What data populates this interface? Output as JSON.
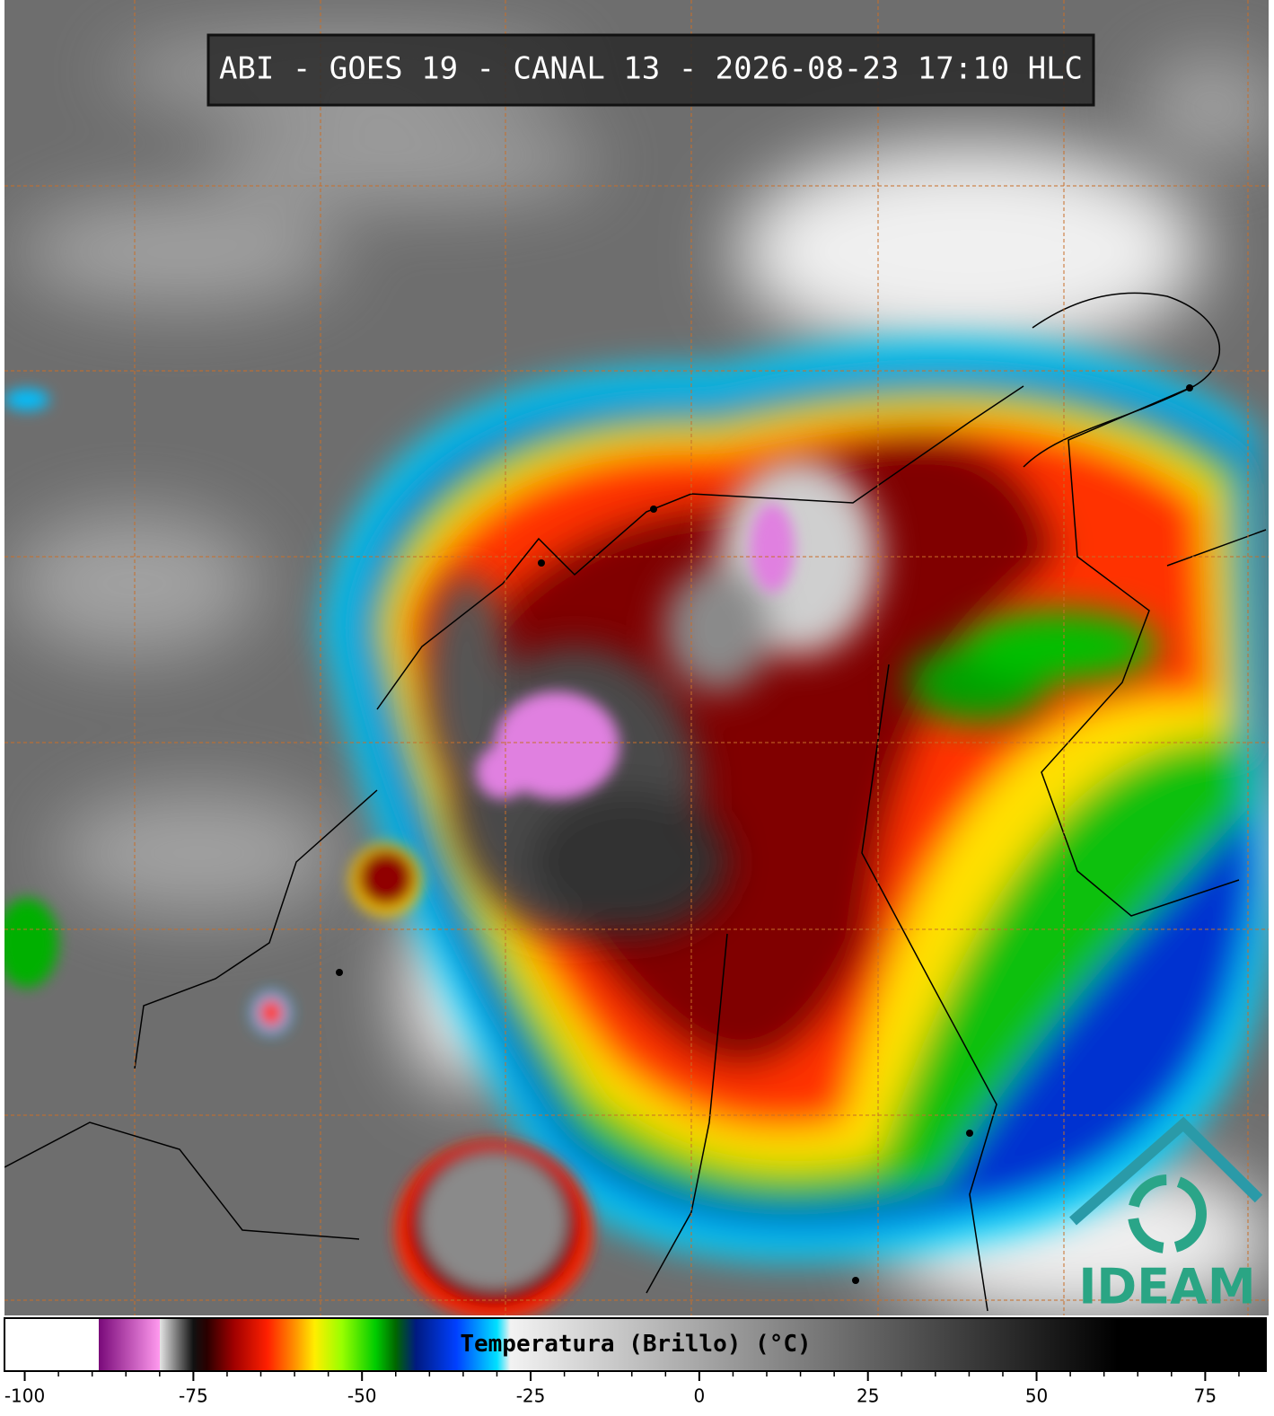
{
  "title": "ABI - GOES 19 - CANAL 13 - 2026-08-23 17:10 HLC",
  "logo": "IDEAM",
  "colorbar": {
    "label": "Temperatura (Brillo) (°C)",
    "xlim": [
      -103,
      84
    ],
    "xticks": [
      -100,
      -75,
      -50,
      -25,
      0,
      25,
      50,
      75
    ],
    "minor_ticks": [
      -100,
      -95,
      -90,
      -85,
      -80,
      -75,
      -70,
      -65,
      -60,
      -55,
      -50,
      -45,
      -40,
      -35,
      -30,
      -25,
      -20,
      -15,
      -10,
      -5,
      0,
      5,
      10,
      15,
      20,
      25,
      30,
      35,
      40,
      45,
      50,
      55,
      60,
      65,
      70,
      75,
      80
    ],
    "colormap": [
      {
        "value": -103,
        "color": "#ffffff"
      },
      {
        "value": -89,
        "color": "#ffffff"
      },
      {
        "value": -89,
        "color": "#7a0a7a"
      },
      {
        "value": -80,
        "color": "#ff99ee"
      },
      {
        "value": -80,
        "color": "#e6e6e6"
      },
      {
        "value": -75,
        "color": "#111111"
      },
      {
        "value": -73,
        "color": "#2a0000"
      },
      {
        "value": -69,
        "color": "#a00000"
      },
      {
        "value": -64,
        "color": "#ff2000"
      },
      {
        "value": -60,
        "color": "#ff9000"
      },
      {
        "value": -57,
        "color": "#ffee00"
      },
      {
        "value": -53,
        "color": "#99ff00"
      },
      {
        "value": -48,
        "color": "#00cc00"
      },
      {
        "value": -45,
        "color": "#006600"
      },
      {
        "value": -42,
        "color": "#001a80"
      },
      {
        "value": -36,
        "color": "#0040ff"
      },
      {
        "value": -30,
        "color": "#00e0ff"
      },
      {
        "value": -28,
        "color": "#f2f2f2"
      },
      {
        "value": 62,
        "color": "#000000"
      },
      {
        "value": 84,
        "color": "#000000"
      }
    ]
  }
}
